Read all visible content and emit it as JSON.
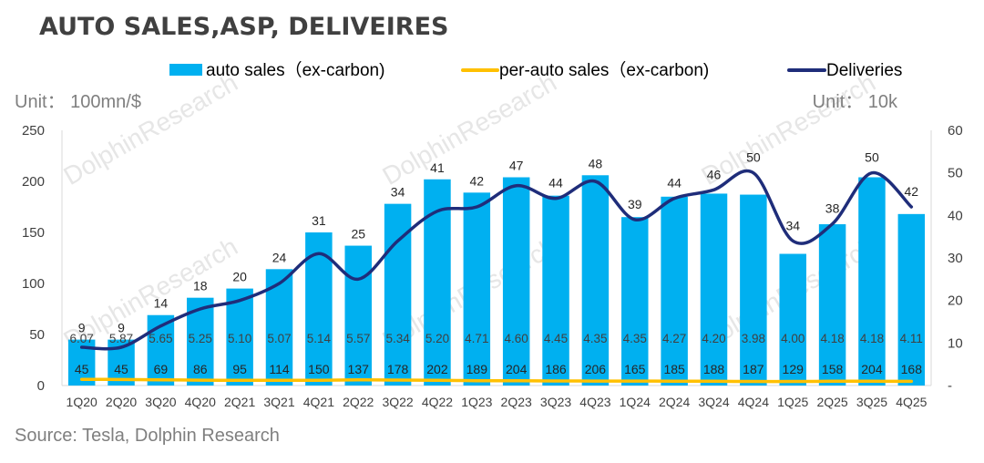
{
  "chart_data": {
    "type": "bar",
    "title": "AUTO SALES,ASP, DELIVEIRES",
    "left_unit": "Unit： 100mn/$",
    "right_unit": "Unit： 10k",
    "source": "Source: Tesla, Dolphin Research",
    "watermark": "DolphinResearch",
    "categories": [
      "1Q20",
      "2Q20",
      "3Q20",
      "4Q20",
      "2Q21",
      "3Q21",
      "4Q21",
      "2Q22",
      "3Q22",
      "4Q22",
      "1Q23",
      "2Q23",
      "3Q23",
      "4Q23",
      "1Q24",
      "2Q24",
      "3Q24",
      "4Q24",
      "1Q25",
      "2Q25",
      "3Q25",
      "4Q25"
    ],
    "left_axis": {
      "min": 0,
      "max": 250,
      "ticks": [
        "0",
        "50",
        "100",
        "150",
        "200",
        "250"
      ]
    },
    "right_axis": {
      "min": 0,
      "max": 60,
      "ticks": [
        "-",
        "10",
        "20",
        "30",
        "40",
        "50",
        "60"
      ]
    },
    "series": [
      {
        "name": "auto sales（ex-carbon)",
        "type": "bar",
        "axis": "left",
        "color": "#00b0f0",
        "values": [
          45,
          45,
          69,
          86,
          95,
          114,
          150,
          137,
          178,
          202,
          189,
          204,
          186,
          206,
          165,
          185,
          188,
          187,
          129,
          158,
          204,
          168
        ]
      },
      {
        "name": "per-auto sales（ex-carbon)",
        "type": "line",
        "axis": "left",
        "color": "#ffc000",
        "values": [
          6.07,
          5.87,
          5.65,
          5.25,
          5.1,
          5.07,
          5.14,
          5.57,
          5.34,
          5.2,
          4.71,
          4.6,
          4.45,
          4.35,
          4.35,
          4.27,
          4.2,
          3.98,
          4.0,
          4.18,
          4.18,
          4.11
        ],
        "labels": [
          "6.07",
          "5.87",
          "5.65",
          "5.25",
          "5.10",
          "5.07",
          "5.14",
          "5.57",
          "5.34",
          "5.20",
          "4.71",
          "4.60",
          "4.45",
          "4.35",
          "4.35",
          "4.27",
          "4.20",
          "3.98",
          "4.00",
          "4.18",
          "4.18",
          "4.11"
        ]
      },
      {
        "name": "Deliveries",
        "type": "line",
        "axis": "right",
        "color": "#1f2d7a",
        "values": [
          9,
          9,
          14,
          18,
          20,
          24,
          31,
          25,
          34,
          41,
          42,
          47,
          44,
          48,
          39,
          44,
          46,
          50,
          34,
          38,
          50,
          42
        ]
      }
    ],
    "legend_position": "top-center",
    "grid": false
  }
}
